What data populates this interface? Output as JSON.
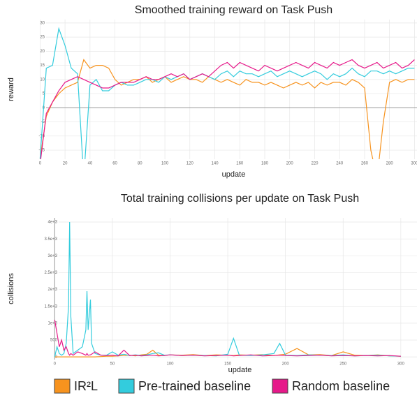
{
  "chart_data": [
    {
      "type": "line",
      "title": "Smoothed training reward on Task Push",
      "xlabel": "update",
      "ylabel": "reward",
      "x": [
        0,
        5,
        10,
        15,
        20,
        25,
        30,
        35,
        40,
        45,
        50,
        55,
        60,
        65,
        70,
        75,
        80,
        85,
        90,
        95,
        100,
        105,
        110,
        115,
        120,
        125,
        130,
        135,
        140,
        145,
        150,
        155,
        160,
        165,
        170,
        175,
        180,
        185,
        190,
        195,
        200,
        205,
        210,
        215,
        220,
        225,
        230,
        235,
        240,
        245,
        250,
        255,
        260,
        265,
        270,
        275,
        280,
        285,
        290,
        295,
        300
      ],
      "xlim": [
        -3,
        302
      ],
      "xticks": [
        0,
        20,
        40,
        60,
        80,
        100,
        120,
        140,
        160,
        180,
        200,
        220,
        240,
        260,
        280,
        300
      ],
      "ylim": [
        -18.2,
        31.2
      ],
      "yticks": [
        -15,
        -10,
        -5,
        0,
        5,
        10,
        15,
        20,
        25,
        30
      ],
      "grid": true,
      "series": [
        {
          "name": "IR²L",
          "color": "#f7931e",
          "values": [
            -18,
            -3,
            2,
            5,
            7,
            8,
            9,
            17,
            14,
            15,
            15,
            14,
            10,
            8,
            9,
            10,
            10,
            11,
            9,
            10,
            11,
            9,
            10,
            11,
            10,
            10,
            9,
            11,
            10,
            9,
            10,
            9,
            8,
            10,
            9,
            9,
            8,
            9,
            8,
            7,
            8,
            9,
            8,
            9,
            7,
            9,
            8,
            9,
            9,
            8,
            10,
            9,
            7,
            -15,
            -25,
            -5,
            9,
            10,
            9,
            10,
            10
          ]
        },
        {
          "name": "Pre-trained baseline",
          "color": "#33ccdd",
          "values": [
            -18,
            14,
            15,
            28,
            22,
            14,
            12,
            -25,
            8,
            10,
            6,
            6,
            8,
            9,
            8,
            8,
            9,
            10,
            10,
            9,
            11,
            10,
            11,
            12,
            10,
            11,
            12,
            11,
            10,
            12,
            13,
            11,
            13,
            12,
            12,
            11,
            12,
            13,
            11,
            12,
            13,
            12,
            11,
            12,
            13,
            12,
            10,
            12,
            11,
            12,
            14,
            12,
            11,
            13,
            13,
            12,
            13,
            12,
            13,
            14,
            14
          ]
        },
        {
          "name": "Random baseline",
          "color": "#e6198a",
          "values": [
            -20,
            -2,
            2,
            6,
            9,
            10,
            11,
            10,
            9,
            8,
            7,
            7,
            8,
            9,
            9,
            9,
            10,
            11,
            10,
            10,
            11,
            12,
            11,
            12,
            10,
            11,
            12,
            11,
            13,
            15,
            16,
            14,
            16,
            15,
            14,
            13,
            15,
            14,
            13,
            14,
            15,
            16,
            15,
            14,
            16,
            15,
            14,
            16,
            15,
            16,
            17,
            15,
            14,
            15,
            16,
            14,
            15,
            16,
            14,
            15,
            17
          ]
        }
      ]
    },
    {
      "type": "line",
      "title": "Total training collisions per update on Task Push",
      "xlabel": "update",
      "ylabel": "collisions",
      "x": [
        0,
        2,
        4,
        6,
        8,
        10,
        12,
        13,
        14,
        16,
        20,
        24,
        27,
        28,
        29,
        31,
        32,
        35,
        40,
        45,
        50,
        55,
        60,
        65,
        70,
        75,
        80,
        85,
        90,
        95,
        100,
        110,
        120,
        130,
        140,
        150,
        155,
        160,
        170,
        180,
        190,
        195,
        200,
        210,
        220,
        230,
        240,
        250,
        260,
        270,
        280,
        290,
        300
      ],
      "xlim": [
        -5,
        314
      ],
      "xticks": [
        0,
        50,
        100,
        150,
        200,
        250,
        300
      ],
      "ylim": [
        -80,
        4125
      ],
      "yticks": [
        0,
        500,
        {
          "value": 1000,
          "label": "1e+3"
        },
        {
          "value": 1500,
          "label": "1.5e+3"
        },
        {
          "value": 2000,
          "label": "2e+3"
        },
        {
          "value": 2500,
          "label": "2.5e+3"
        },
        {
          "value": 3000,
          "label": "3e+3"
        },
        {
          "value": 3500,
          "label": "3.5e+3"
        },
        {
          "value": 4000,
          "label": "4e+3"
        }
      ],
      "grid": true,
      "series": [
        {
          "color": "#f7931e",
          "values": [
            0,
            0,
            0,
            0,
            0,
            0,
            0,
            0,
            0,
            0,
            0,
            0,
            0,
            0,
            0,
            0,
            0,
            0,
            10,
            20,
            20,
            30,
            40,
            50,
            30,
            60,
            80,
            200,
            50,
            40,
            60,
            50,
            70,
            40,
            60,
            50,
            40,
            60,
            50,
            70,
            40,
            60,
            80,
            250,
            60,
            70,
            40,
            150,
            50,
            40,
            60,
            30,
            20
          ]
        },
        {
          "color": "#33ccdd",
          "values": [
            0,
            300,
            100,
            50,
            100,
            400,
            1500,
            4000,
            1200,
            100,
            200,
            300,
            800,
            1950,
            800,
            1700,
            400,
            100,
            50,
            50,
            150,
            50,
            80,
            40,
            60,
            40,
            60,
            100,
            120,
            50,
            60,
            40,
            50,
            40,
            30,
            80,
            550,
            50,
            40,
            60,
            100,
            400,
            50,
            40,
            60,
            50,
            40,
            60,
            30,
            40,
            50,
            30,
            20
          ]
        },
        {
          "color": "#e6198a",
          "values": [
            1100,
            700,
            300,
            500,
            200,
            300,
            100,
            50,
            100,
            50,
            150,
            100,
            50,
            100,
            50,
            60,
            80,
            150,
            50,
            40,
            50,
            30,
            200,
            40,
            50,
            30,
            40,
            50,
            30,
            40,
            60,
            40,
            50,
            30,
            40,
            50,
            30,
            40,
            60,
            30,
            40,
            50,
            40,
            30,
            40,
            50,
            30,
            40,
            30,
            40,
            30,
            40,
            20
          ]
        }
      ]
    }
  ]
}
